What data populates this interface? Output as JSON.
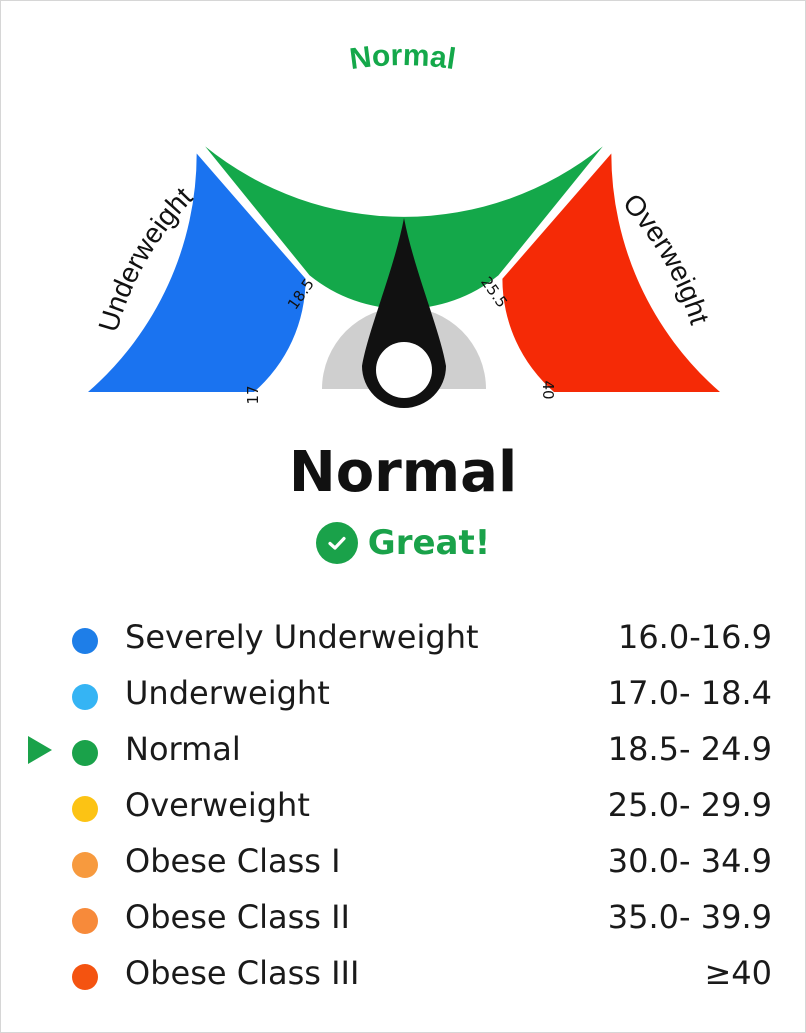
{
  "gauge": {
    "value": "21.9",
    "top_label": "Normal",
    "left_label": "Underweight",
    "right_label": "Overweight",
    "ticks": [
      "17",
      "18.5",
      "25.5",
      "40"
    ],
    "colors": {
      "underweight": "#1a73f0",
      "normal": "#14a84a",
      "overweight": "#f52a06",
      "needle": "#111111",
      "hub": "#cfcfcf"
    }
  },
  "status": {
    "title": "Normal",
    "verdict": "Great!",
    "verdict_icon": "check-circle-icon"
  },
  "legend": [
    {
      "label": "Severely Underweight",
      "range": "16.0-16.9",
      "color": "#1e7ee8",
      "selected": false
    },
    {
      "label": "Underweight",
      "range": "17.0- 18.4",
      "color": "#35b4f4",
      "selected": false
    },
    {
      "label": "Normal",
      "range": "18.5- 24.9",
      "color": "#1aa24a",
      "selected": true
    },
    {
      "label": "Overweight",
      "range": "25.0- 29.9",
      "color": "#fcc314",
      "selected": false
    },
    {
      "label": "Obese Class I",
      "range": "30.0- 34.9",
      "color": "#f79a3e",
      "selected": false
    },
    {
      "label": "Obese Class II",
      "range": "35.0- 39.9",
      "color": "#f78a3a",
      "selected": false
    },
    {
      "label": "Obese Class III",
      "range": "≥40",
      "color": "#f45310",
      "selected": false
    }
  ]
}
